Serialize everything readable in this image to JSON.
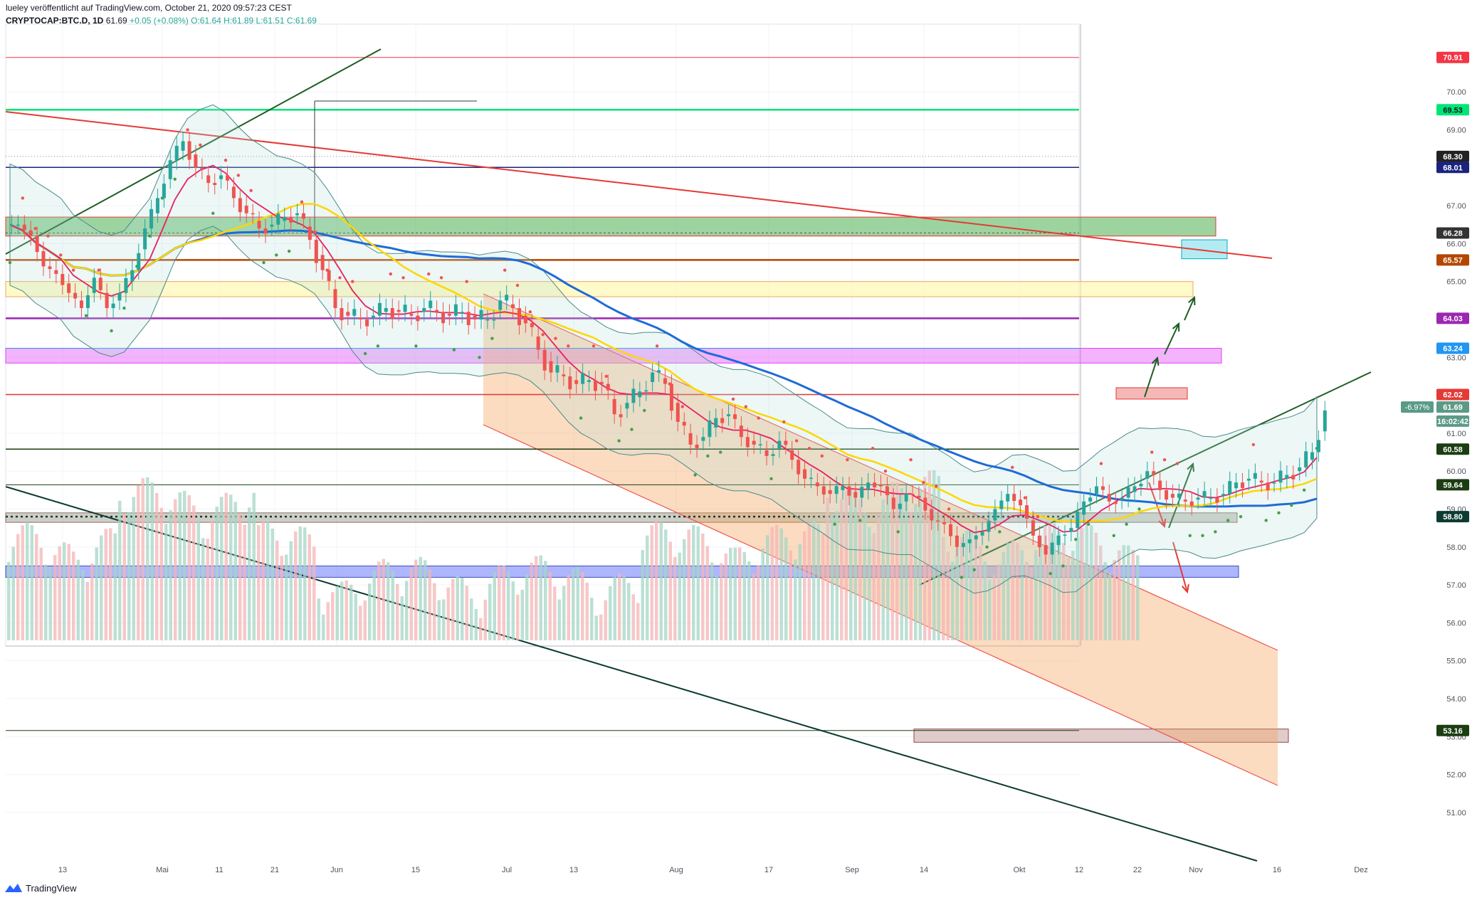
{
  "header": {
    "publisher": "lueley veröffentlicht auf TradingView.com, October 21, 2020 09:57:23 CEST",
    "symbol": "CRYPTOCAP:BTC.D, 1D",
    "last": "61.69",
    "change": "+0.05 (+0.08%)",
    "ohlc": "O:61.64 H:61.89 L:61.51 C:61.69"
  },
  "logo_text": "TradingView",
  "colors": {
    "up": "#26a69a",
    "down": "#ef5350",
    "channel": "#f5a45a",
    "green_zone": "#4caf50",
    "purple": "#9c27b0",
    "orange": "#e65100",
    "blue": "#1565c0",
    "yellow": "#ffd600",
    "pink": "#e040fb"
  },
  "chart_data": {
    "type": "candlestick",
    "title": "CRYPTOCAP:BTC.D, 1D",
    "ylim": [
      50.4,
      71.4
    ],
    "y_ticks": [
      "51.00",
      "52.00",
      "53.00",
      "54.00",
      "55.00",
      "56.00",
      "57.00",
      "58.00",
      "59.00",
      "60.00",
      "61.00",
      "62.00",
      "63.00",
      "64.00",
      "65.00",
      "66.00",
      "67.00",
      "68.00",
      "69.00",
      "70.00"
    ],
    "x_ticks": [
      "13",
      "Mai",
      "11",
      "21",
      "Jun",
      "15",
      "Jul",
      "13",
      "Aug",
      "17",
      "Sep",
      "14",
      "Okt",
      "12",
      "22",
      "Nov",
      "16",
      "Dez"
    ],
    "price_labels": [
      {
        "text": "70.91",
        "value": 70.91,
        "color": "#f23645",
        "tcolor": "#ffffff"
      },
      {
        "text": "69.53",
        "value": 69.53,
        "color": "#00e676",
        "tcolor": "#131722"
      },
      {
        "text": "68.30",
        "value": 68.3,
        "color": "#222222",
        "tcolor": "#ffffff"
      },
      {
        "text": "68.01",
        "value": 68.01,
        "color": "#1a237e",
        "tcolor": "#ffffff"
      },
      {
        "text": "66.28",
        "value": 66.28,
        "color": "#333333",
        "tcolor": "#ffffff"
      },
      {
        "text": "65.57",
        "value": 65.57,
        "color": "#b34700",
        "tcolor": "#ffffff"
      },
      {
        "text": "64.03",
        "value": 64.03,
        "color": "#9c27b0",
        "tcolor": "#ffffff"
      },
      {
        "text": "63.24",
        "value": 63.24,
        "color": "#2196f3",
        "tcolor": "#ffffff"
      },
      {
        "text": "62.02",
        "value": 62.02,
        "color": "#e53935",
        "tcolor": "#ffffff"
      },
      {
        "text": "61.69",
        "value": 61.69,
        "color": "#5b9a87",
        "tcolor": "#ffffff"
      },
      {
        "text": "16:02:42",
        "value": 61.32,
        "color": "#5b9a87",
        "tcolor": "#ffffff"
      },
      {
        "text": "60.58",
        "value": 60.58,
        "color": "#1b3d12",
        "tcolor": "#ffffff"
      },
      {
        "text": "59.64",
        "value": 59.64,
        "color": "#1b3d12",
        "tcolor": "#ffffff"
      },
      {
        "text": "58.80",
        "value": 58.8,
        "color": "#0d3b33",
        "tcolor": "#ffffff"
      },
      {
        "text": "53.16",
        "value": 53.16,
        "color": "#1b3d12",
        "tcolor": "#ffffff"
      }
    ],
    "pct_label": "-6.97%",
    "trend": [
      66.5,
      66.2,
      65.4,
      65.2,
      64.7,
      64.3,
      65.1,
      64.3,
      64.7,
      65.3,
      66.4,
      67.2,
      68.2,
      68.7,
      68.0,
      67.6,
      67.8,
      67.2,
      66.8,
      66.4,
      66.5,
      66.7,
      66.8,
      66.1,
      65.3,
      64.3,
      64.1,
      64.0,
      64.1,
      64.3,
      64.2,
      64.1,
      64.3,
      64.2,
      64.1,
      64.2,
      64.0,
      64.0,
      64.5,
      64.3,
      63.9,
      63.2,
      62.6,
      62.5,
      62.3,
      62.4,
      62.3,
      61.5,
      61.8,
      62.1,
      62.6,
      62.3,
      61.3,
      60.7,
      60.9,
      61.4,
      61.5,
      60.9,
      60.7,
      60.4,
      60.8,
      60.3,
      59.8,
      59.6,
      59.4,
      59.6,
      59.3,
      59.7,
      59.6,
      59.0,
      59.4,
      59.3,
      58.7,
      58.6,
      58.0,
      58.2,
      58.4,
      59.0,
      59.4,
      59.1,
      58.3,
      57.8,
      58.3,
      58.5,
      59.2,
      59.6,
      59.2,
      59.3,
      59.6,
      60.0,
      59.5,
      59.3,
      59.2,
      59.3,
      59.3,
      59.4,
      59.7,
      59.8,
      59.7,
      59.7,
      59.9,
      60.1,
      60.5,
      61.6
    ]
  }
}
